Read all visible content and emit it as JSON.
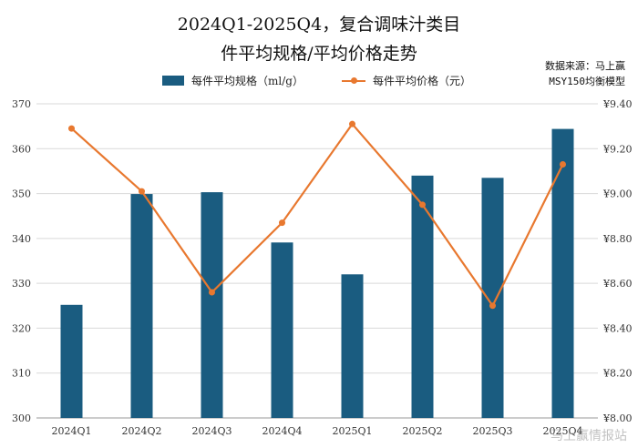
{
  "chart_data": {
    "type": "bar+line",
    "title_line1": "2024Q1-2025Q4，复合调味汁类目",
    "title_line2": "件平均规格/平均价格走势",
    "source_line1": "数据来源：马上赢",
    "source_line2": "MSY150均衡模型",
    "categories": [
      "2024Q1",
      "2024Q2",
      "2024Q3",
      "2024Q4",
      "2025Q1",
      "2025Q2",
      "2025Q3",
      "2025Q4"
    ],
    "series": [
      {
        "name": "每件平均规格（ml/g）",
        "type": "bar",
        "axis": "left",
        "color": "#1a5c80",
        "values": [
          325.2,
          349.9,
          350.3,
          339.1,
          332.0,
          354.0,
          353.5,
          364.4
        ]
      },
      {
        "name": "每件平均价格（元）",
        "type": "line",
        "axis": "right",
        "color": "#e8782f",
        "values": [
          9.29,
          9.01,
          8.56,
          8.87,
          9.31,
          8.95,
          8.5,
          9.13
        ]
      }
    ],
    "y_left": {
      "min": 300,
      "max": 370,
      "ticks": [
        "300",
        "310",
        "320",
        "330",
        "340",
        "350",
        "360",
        "370"
      ]
    },
    "y_right": {
      "min": 8.0,
      "max": 9.4,
      "ticks": [
        "¥8.00",
        "¥8.20",
        "¥8.40",
        "¥8.60",
        "¥8.80",
        "¥9.00",
        "¥9.20",
        "¥9.40"
      ]
    },
    "grid": "horizontal",
    "legend_position": "top-center"
  },
  "watermark": "马上赢情报站"
}
